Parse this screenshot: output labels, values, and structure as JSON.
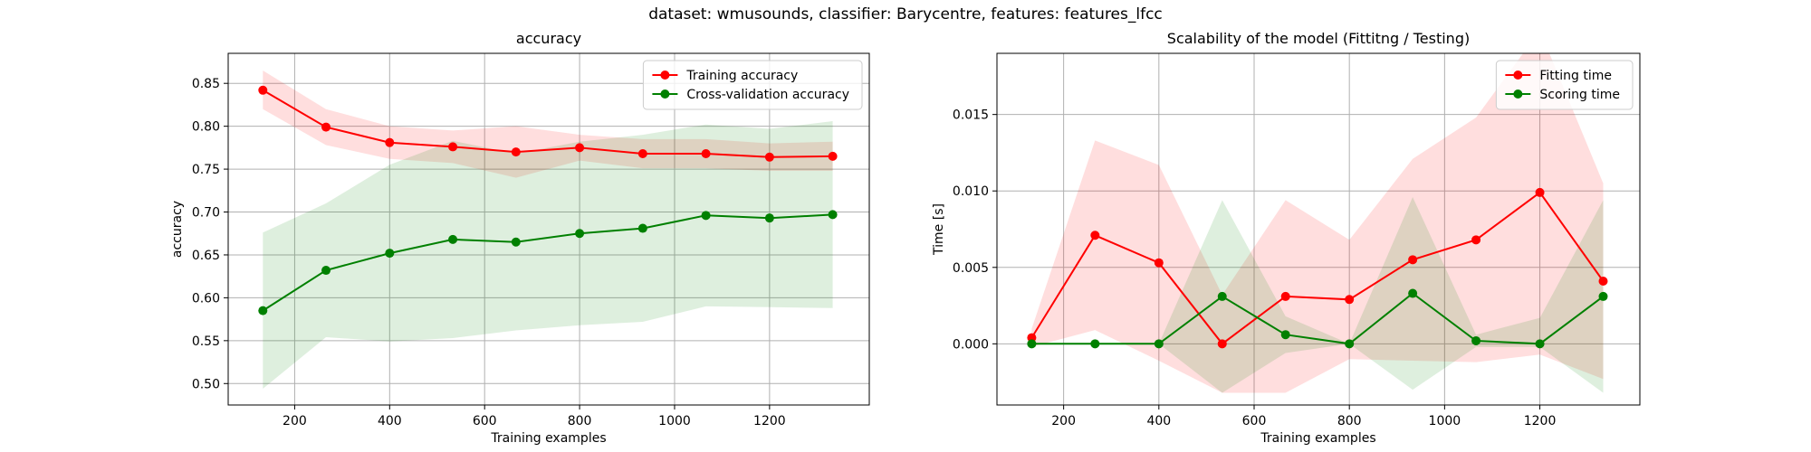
{
  "figure": {
    "suptitle": "dataset: wmusounds, classifier: Barycentre, features: features_lfcc"
  },
  "chart_data": [
    {
      "type": "line",
      "title": "accuracy",
      "xlabel": "Training examples",
      "ylabel": "accuracy",
      "xlim": [
        60,
        1410
      ],
      "ylim": [
        0.475,
        0.885
      ],
      "xticks": [
        200,
        400,
        600,
        800,
        1000,
        1200
      ],
      "yticks": [
        0.5,
        0.55,
        0.6,
        0.65,
        0.7,
        0.75,
        0.8,
        0.85
      ],
      "ytick_decimals": 2,
      "grid": true,
      "legend": "top-right",
      "x": [
        133,
        266,
        400,
        533,
        666,
        800,
        933,
        1066,
        1200,
        1333
      ],
      "series": [
        {
          "name": "Training accuracy",
          "color": "#ff0000",
          "fill": "#ffdddd",
          "values": [
            0.842,
            0.799,
            0.781,
            0.776,
            0.77,
            0.775,
            0.768,
            0.768,
            0.764,
            0.765
          ],
          "upper": [
            0.865,
            0.82,
            0.8,
            0.795,
            0.8,
            0.79,
            0.785,
            0.785,
            0.78,
            0.782
          ],
          "lower": [
            0.82,
            0.778,
            0.762,
            0.757,
            0.74,
            0.76,
            0.751,
            0.751,
            0.748,
            0.748
          ]
        },
        {
          "name": "Cross-validation accuracy",
          "color": "#008000",
          "fill": "#d4ead4",
          "values": [
            0.585,
            0.632,
            0.652,
            0.668,
            0.665,
            0.675,
            0.681,
            0.696,
            0.693,
            0.697
          ],
          "upper": [
            0.676,
            0.71,
            0.755,
            0.783,
            0.768,
            0.782,
            0.79,
            0.802,
            0.797,
            0.806
          ],
          "lower": [
            0.494,
            0.554,
            0.549,
            0.553,
            0.562,
            0.568,
            0.572,
            0.59,
            0.589,
            0.588
          ]
        }
      ]
    },
    {
      "type": "line",
      "title": "Scalability of the model (Fittitng / Testing)",
      "xlabel": "Training examples",
      "ylabel": "Time [s]",
      "xlim": [
        60,
        1410
      ],
      "ylim": [
        -0.004,
        0.019
      ],
      "xticks": [
        200,
        400,
        600,
        800,
        1000,
        1200
      ],
      "yticks": [
        0.0,
        0.005,
        0.01,
        0.015
      ],
      "ytick_decimals": 3,
      "grid": true,
      "legend": "top-right",
      "x": [
        133,
        266,
        400,
        533,
        666,
        800,
        933,
        1066,
        1200,
        1333
      ],
      "series": [
        {
          "name": "Fitting time",
          "color": "#ff0000",
          "fill": "#ffdddd",
          "values": [
            0.0004,
            0.0071,
            0.0053,
            0.0,
            0.0031,
            0.0029,
            0.0055,
            0.0068,
            0.0099,
            0.0041
          ],
          "upper": [
            0.001,
            0.0133,
            0.0117,
            0.0032,
            0.0094,
            0.0068,
            0.0121,
            0.0148,
            0.0205,
            0.0105
          ],
          "lower": [
            -0.0002,
            0.0009,
            -0.0011,
            -0.0032,
            -0.0032,
            -0.001,
            -0.0011,
            -0.0012,
            -0.0007,
            -0.0023
          ]
        },
        {
          "name": "Scoring time",
          "color": "#008000",
          "fill": "#d4ead4",
          "values": [
            0.0,
            0.0,
            0.0,
            0.0031,
            0.0006,
            0.0,
            0.0033,
            0.0002,
            0.0,
            0.0031
          ],
          "upper": [
            0.0,
            0.0,
            0.0,
            0.0094,
            0.0018,
            0.0,
            0.0096,
            0.0006,
            0.0017,
            0.0094
          ],
          "lower": [
            0.0,
            0.0,
            0.0,
            -0.0032,
            -0.0006,
            0.0,
            -0.003,
            -0.0002,
            -0.0002,
            -0.0032
          ]
        }
      ]
    }
  ]
}
